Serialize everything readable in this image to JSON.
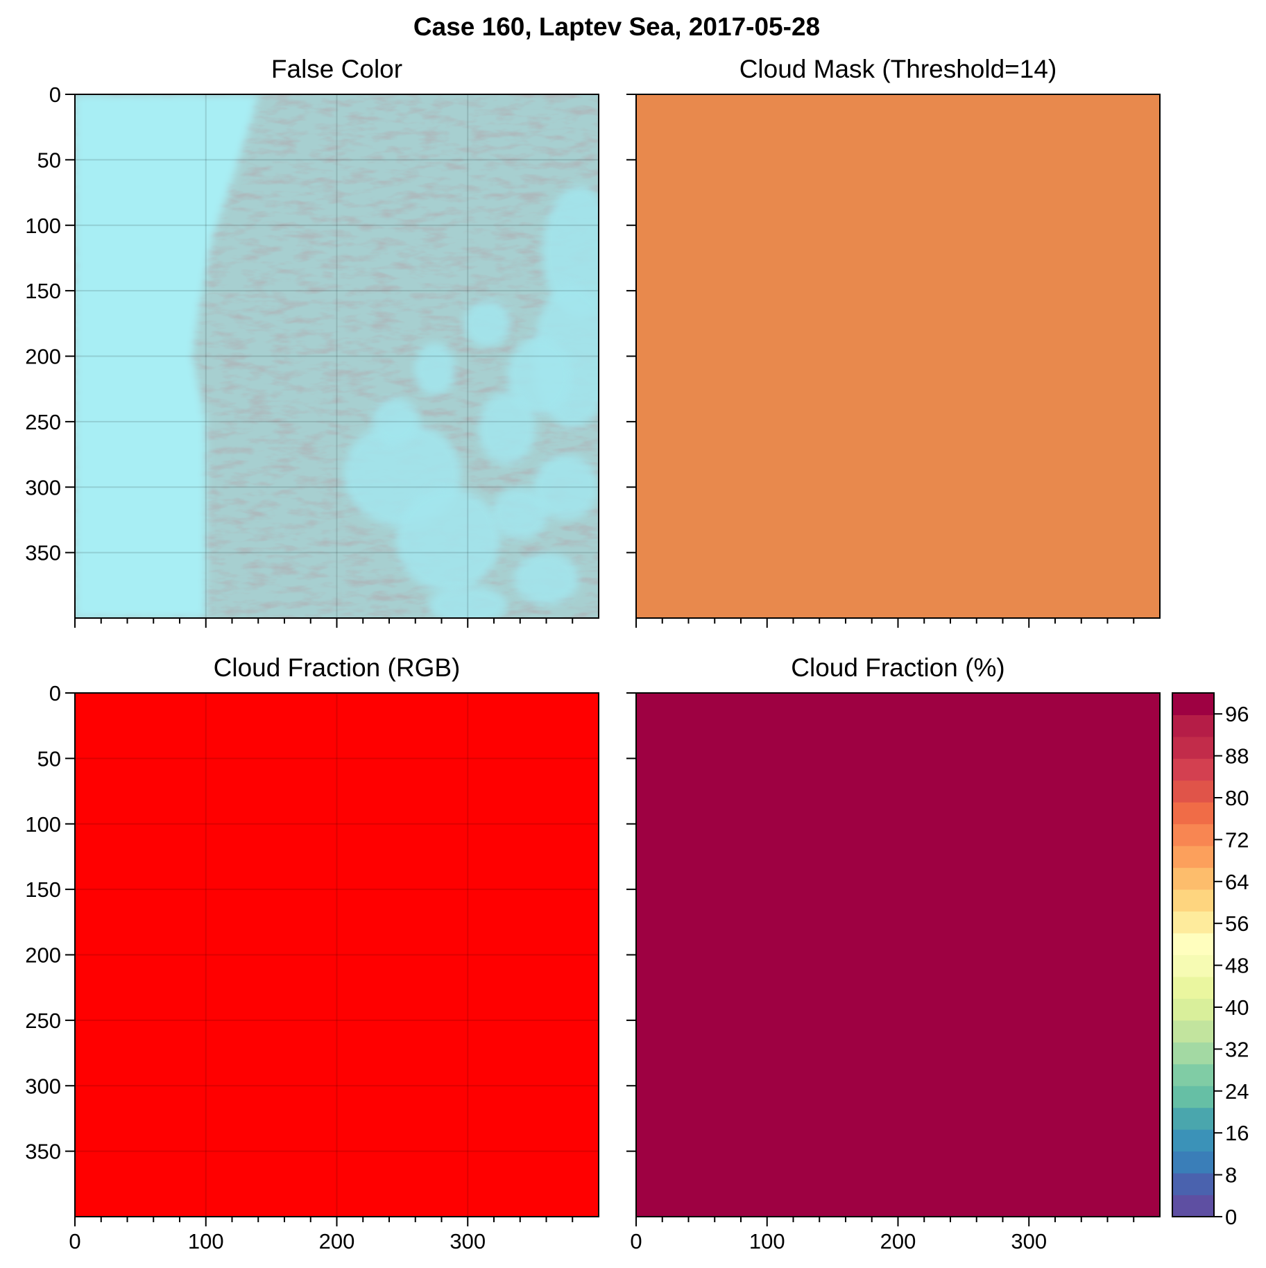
{
  "figure": {
    "title": "Case 160, Laptev Sea, 2017-05-28"
  },
  "chart_data": [
    {
      "type": "heatmap",
      "title": "False Color",
      "xlim": [
        0,
        400
      ],
      "ylim": [
        400,
        0
      ],
      "xticks": [
        "0",
        "100",
        "200",
        "300"
      ],
      "yticks": [
        "0",
        "50",
        "100",
        "150",
        "200",
        "250",
        "300",
        "350"
      ],
      "show_xtick_labels": false,
      "show_ytick_labels": true,
      "grid": true,
      "content": "false-color satellite image: smooth cyan sea ice on left, darker textured cloud region in center, brighter cyan cloud-free patches on right",
      "colors": {
        "ice": "#a8eef4",
        "cloud": "#a7cfd0",
        "patch": "#a3e6ee"
      }
    },
    {
      "type": "heatmap",
      "title": "Cloud Mask (Threshold=14)",
      "xlim": [
        0,
        400
      ],
      "ylim": [
        400,
        0
      ],
      "xticks": [
        "0",
        "100",
        "200",
        "300"
      ],
      "yticks": [
        "0",
        "50",
        "100",
        "150",
        "200",
        "250",
        "300",
        "350"
      ],
      "show_xtick_labels": false,
      "show_ytick_labels": false,
      "grid": false,
      "uniform_color": "#e8894d"
    },
    {
      "type": "heatmap",
      "title": "Cloud Fraction (RGB)",
      "xlim": [
        0,
        400
      ],
      "ylim": [
        400,
        0
      ],
      "xticks": [
        "0",
        "100",
        "200",
        "300"
      ],
      "yticks": [
        "0",
        "50",
        "100",
        "150",
        "200",
        "250",
        "300",
        "350"
      ],
      "show_xtick_labels": true,
      "show_ytick_labels": true,
      "grid": true,
      "uniform_color": "#ff0000"
    },
    {
      "type": "heatmap",
      "title": "Cloud Fraction (%)",
      "xlim": [
        0,
        400
      ],
      "ylim": [
        400,
        0
      ],
      "xticks": [
        "0",
        "100",
        "200",
        "300"
      ],
      "yticks": [
        "0",
        "50",
        "100",
        "150",
        "200",
        "250",
        "300",
        "350"
      ],
      "show_xtick_labels": true,
      "show_ytick_labels": false,
      "grid": false,
      "uniform_color": "#9e0142",
      "colorbar": {
        "range": [
          0,
          100
        ],
        "step": 4,
        "ticks": [
          "0",
          "8",
          "16",
          "24",
          "32",
          "40",
          "48",
          "56",
          "64",
          "72",
          "80",
          "88",
          "96"
        ],
        "colormap": "Spectral_r",
        "colors": [
          "#5e4fa2",
          "#4a62ae",
          "#3a7eb8",
          "#3b92b8",
          "#4aa6ad",
          "#66bfa5",
          "#80cca5",
          "#a3d9a3",
          "#c2e49e",
          "#d9ef9b",
          "#eaf69f",
          "#f6fbb3",
          "#fffebe",
          "#feeb9c",
          "#fed57f",
          "#fdbd6c",
          "#fca05c",
          "#f88652",
          "#f06c47",
          "#e05449",
          "#d34050",
          "#c22c4a",
          "#b51d47",
          "#9e0142"
        ]
      }
    }
  ]
}
